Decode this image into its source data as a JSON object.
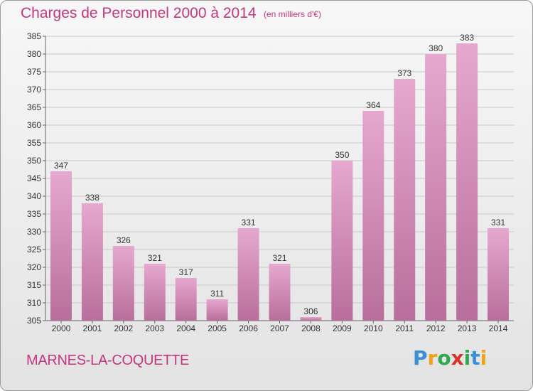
{
  "header": {
    "title": "Charges de Personnel 2000 à 2014",
    "subtitle": "(en milliers d'€)"
  },
  "footer": {
    "commune": "MARNES-LA-COQUETTE",
    "logo_letters": [
      "P",
      "r",
      "o",
      "x",
      "i",
      "t",
      "i"
    ]
  },
  "colors": {
    "title": "#c4367f",
    "bar_light": "#e6a8cf",
    "bar_dark": "#b86e9c",
    "axis": "#666666",
    "grid": "#c8c8c8"
  },
  "chart_data": {
    "type": "bar",
    "categories": [
      "2000",
      "2001",
      "2002",
      "2003",
      "2004",
      "2005",
      "2006",
      "2007",
      "2008",
      "2009",
      "2010",
      "2011",
      "2012",
      "2013",
      "2014"
    ],
    "values": [
      347,
      338,
      326,
      321,
      317,
      311,
      331,
      321,
      306,
      350,
      364,
      373,
      380,
      383,
      331
    ],
    "ylim": [
      305,
      385
    ],
    "yticks": [
      305,
      310,
      315,
      320,
      325,
      330,
      335,
      340,
      345,
      350,
      355,
      360,
      365,
      370,
      375,
      380,
      385
    ],
    "grid": true,
    "xlabel": "",
    "ylabel": ""
  }
}
